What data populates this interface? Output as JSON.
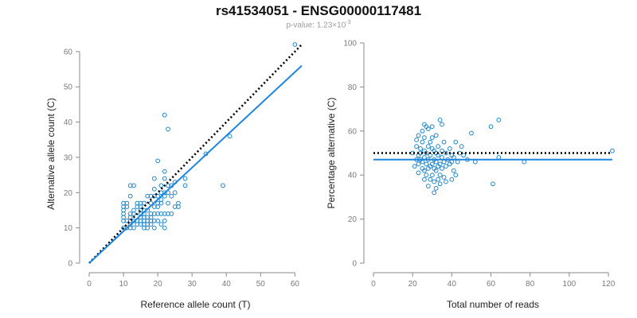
{
  "header": {
    "title": "rs41534051 - ENSG00000117481",
    "subtitle_base": "p-value: 1.23×10",
    "subtitle_exp": "-3"
  },
  "colors": {
    "points": "#1f86c8",
    "fit": "#1f86e0",
    "reference": "#000000",
    "axis": "#8a8a8a"
  },
  "chart_data": [
    {
      "type": "scatter",
      "xlabel": "Reference allele count (T)",
      "ylabel": "Alternative allele count (C)",
      "xlim": [
        0,
        62
      ],
      "ylim": [
        0,
        62
      ],
      "xticks": [
        0,
        10,
        20,
        30,
        40,
        50,
        60
      ],
      "yticks": [
        0,
        10,
        20,
        30,
        40,
        50,
        60
      ],
      "grid": false,
      "lines": [
        {
          "style": "dotted",
          "color": "#000000",
          "x": [
            0,
            62
          ],
          "y": [
            0,
            62
          ]
        },
        {
          "style": "solid",
          "color": "#1f86e0",
          "x": [
            0,
            62
          ],
          "y": [
            0,
            56
          ]
        }
      ],
      "points": [
        [
          10,
          10
        ],
        [
          10,
          12
        ],
        [
          10,
          13
        ],
        [
          10,
          14
        ],
        [
          10,
          15
        ],
        [
          10,
          16
        ],
        [
          10,
          17
        ],
        [
          11,
          10
        ],
        [
          11,
          12
        ],
        [
          11,
          16
        ],
        [
          11,
          17
        ],
        [
          12,
          10
        ],
        [
          12,
          11
        ],
        [
          12,
          12
        ],
        [
          12,
          13
        ],
        [
          12,
          14
        ],
        [
          12,
          19
        ],
        [
          12,
          22
        ],
        [
          13,
          10
        ],
        [
          13,
          12
        ],
        [
          13,
          14
        ],
        [
          13,
          15
        ],
        [
          13,
          22
        ],
        [
          14,
          11
        ],
        [
          14,
          12
        ],
        [
          14,
          16
        ],
        [
          14,
          17
        ],
        [
          15,
          11
        ],
        [
          15,
          12
        ],
        [
          15,
          13
        ],
        [
          15,
          14
        ],
        [
          15,
          15
        ],
        [
          15,
          16
        ],
        [
          15,
          17
        ],
        [
          16,
          10
        ],
        [
          16,
          11
        ],
        [
          16,
          12
        ],
        [
          16,
          13
        ],
        [
          16,
          14
        ],
        [
          16,
          15
        ],
        [
          16,
          17
        ],
        [
          17,
          10
        ],
        [
          17,
          11
        ],
        [
          17,
          12
        ],
        [
          17,
          13
        ],
        [
          17,
          15
        ],
        [
          17,
          19
        ],
        [
          18,
          11
        ],
        [
          18,
          12
        ],
        [
          18,
          13
        ],
        [
          18,
          14
        ],
        [
          18,
          17
        ],
        [
          18,
          19
        ],
        [
          19,
          10
        ],
        [
          19,
          12
        ],
        [
          19,
          14
        ],
        [
          19,
          16
        ],
        [
          19,
          19
        ],
        [
          19,
          21
        ],
        [
          19,
          24
        ],
        [
          20,
          12
        ],
        [
          20,
          14
        ],
        [
          20,
          16
        ],
        [
          20,
          17
        ],
        [
          20,
          19
        ],
        [
          20,
          29
        ],
        [
          21,
          11
        ],
        [
          21,
          14
        ],
        [
          21,
          17
        ],
        [
          21,
          18
        ],
        [
          21,
          20
        ],
        [
          21,
          22
        ],
        [
          22,
          10
        ],
        [
          22,
          12
        ],
        [
          22,
          14
        ],
        [
          22,
          19
        ],
        [
          22,
          20
        ],
        [
          22,
          24
        ],
        [
          22,
          26
        ],
        [
          22,
          42
        ],
        [
          23,
          14
        ],
        [
          23,
          17
        ],
        [
          23,
          20
        ],
        [
          23,
          22
        ],
        [
          23,
          38
        ],
        [
          24,
          14
        ],
        [
          24,
          19
        ],
        [
          24,
          22
        ],
        [
          25,
          16
        ],
        [
          25,
          20
        ],
        [
          25,
          23
        ],
        [
          26,
          16
        ],
        [
          26,
          17
        ],
        [
          28,
          22
        ],
        [
          28,
          24
        ],
        [
          34,
          31
        ],
        [
          39,
          22
        ],
        [
          41,
          36
        ],
        [
          60,
          62
        ]
      ]
    },
    {
      "type": "scatter",
      "xlabel": "Total number of reads",
      "ylabel": "Percentage alternative (C)",
      "xlim": [
        0,
        122
      ],
      "ylim": [
        0,
        100
      ],
      "xticks": [
        0,
        20,
        40,
        60,
        80,
        100,
        120
      ],
      "yticks": [
        0,
        20,
        40,
        60,
        80,
        100
      ],
      "grid": false,
      "lines": [
        {
          "style": "dotted",
          "color": "#000000",
          "x": [
            0,
            122
          ],
          "y": [
            50,
            50
          ]
        },
        {
          "style": "solid",
          "color": "#1f86e0",
          "x": [
            0,
            122
          ],
          "y": [
            47,
            47
          ]
        }
      ],
      "points": [
        [
          20,
          50
        ],
        [
          21,
          44
        ],
        [
          22,
          47
        ],
        [
          22,
          53
        ],
        [
          22,
          56
        ],
        [
          23,
          41
        ],
        [
          23,
          45
        ],
        [
          23,
          49
        ],
        [
          23,
          58
        ],
        [
          24,
          47
        ],
        [
          24,
          50
        ],
        [
          24,
          52
        ],
        [
          25,
          43
        ],
        [
          25,
          46
        ],
        [
          25,
          55
        ],
        [
          25,
          60
        ],
        [
          26,
          38
        ],
        [
          26,
          42
        ],
        [
          26,
          48
        ],
        [
          26,
          51
        ],
        [
          26,
          57
        ],
        [
          26,
          63
        ],
        [
          27,
          40
        ],
        [
          27,
          45
        ],
        [
          27,
          50
        ],
        [
          27,
          62
        ],
        [
          28,
          35
        ],
        [
          28,
          43
        ],
        [
          28,
          47
        ],
        [
          28,
          53
        ],
        [
          28,
          61
        ],
        [
          29,
          38
        ],
        [
          29,
          44
        ],
        [
          29,
          49
        ],
        [
          29,
          55
        ],
        [
          30,
          40
        ],
        [
          30,
          45
        ],
        [
          30,
          52
        ],
        [
          30,
          57
        ],
        [
          30,
          62
        ],
        [
          31,
          32
        ],
        [
          31,
          37
        ],
        [
          31,
          43
        ],
        [
          31,
          47
        ],
        [
          31,
          51
        ],
        [
          32,
          34
        ],
        [
          32,
          42
        ],
        [
          32,
          46
        ],
        [
          32,
          50
        ],
        [
          32,
          58
        ],
        [
          33,
          38
        ],
        [
          33,
          44
        ],
        [
          33,
          49
        ],
        [
          33,
          53
        ],
        [
          34,
          36
        ],
        [
          34,
          40
        ],
        [
          34,
          45
        ],
        [
          34,
          65
        ],
        [
          35,
          43
        ],
        [
          35,
          48
        ],
        [
          35,
          51
        ],
        [
          35,
          63
        ],
        [
          36,
          39
        ],
        [
          36,
          46
        ],
        [
          36,
          55
        ],
        [
          37,
          37
        ],
        [
          37,
          44
        ],
        [
          37,
          50
        ],
        [
          38,
          47
        ],
        [
          39,
          45
        ],
        [
          39,
          52
        ],
        [
          40,
          38
        ],
        [
          40,
          46
        ],
        [
          40,
          49
        ],
        [
          41,
          42
        ],
        [
          41,
          48
        ],
        [
          42,
          40
        ],
        [
          42,
          55
        ],
        [
          43,
          46
        ],
        [
          44,
          50
        ],
        [
          45,
          53
        ],
        [
          46,
          49
        ],
        [
          48,
          47
        ],
        [
          50,
          59
        ],
        [
          52,
          46
        ],
        [
          60,
          62
        ],
        [
          61,
          36
        ],
        [
          64,
          65
        ],
        [
          64,
          48
        ],
        [
          77,
          46
        ],
        [
          122,
          51
        ]
      ]
    }
  ]
}
